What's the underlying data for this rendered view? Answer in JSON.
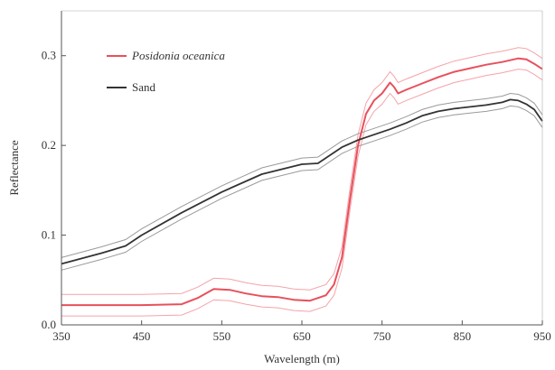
{
  "chart_data": {
    "type": "line",
    "xlabel": "Wavelength (m)",
    "ylabel": "Reflectance",
    "xlim": [
      350,
      950
    ],
    "ylim": [
      0,
      0.35
    ],
    "xticks": [
      350,
      450,
      550,
      650,
      750,
      850,
      950
    ],
    "xtick_labels": [
      "350",
      "450",
      "550",
      "650",
      "750",
      "850",
      "950"
    ],
    "yticks": [
      0.0,
      0.1,
      0.2,
      0.3
    ],
    "ytick_labels": [
      "0.0",
      "0.1",
      "0.2",
      "0.3"
    ],
    "grid": false,
    "legend_position": "top-left",
    "series": [
      {
        "name": "Posidonia oceanica",
        "italic": true,
        "color": "#e8505b",
        "band_color": "#f4a3aa",
        "band_width": 0.012,
        "x": [
          350,
          400,
          450,
          500,
          520,
          540,
          560,
          580,
          600,
          620,
          640,
          660,
          680,
          690,
          700,
          710,
          720,
          730,
          740,
          750,
          760,
          765,
          770,
          780,
          800,
          820,
          840,
          860,
          880,
          900,
          920,
          930,
          940,
          950
        ],
        "y": [
          0.022,
          0.022,
          0.022,
          0.023,
          0.03,
          0.04,
          0.039,
          0.035,
          0.032,
          0.031,
          0.028,
          0.027,
          0.033,
          0.045,
          0.075,
          0.14,
          0.2,
          0.235,
          0.25,
          0.258,
          0.27,
          0.265,
          0.258,
          0.262,
          0.269,
          0.276,
          0.282,
          0.286,
          0.29,
          0.293,
          0.297,
          0.296,
          0.291,
          0.285
        ]
      },
      {
        "name": "Sand",
        "italic": false,
        "color": "#333333",
        "band_color": "#9a9a9a",
        "band_width": 0.007,
        "x": [
          350,
          400,
          430,
          450,
          500,
          550,
          600,
          650,
          670,
          700,
          720,
          740,
          760,
          780,
          800,
          820,
          840,
          860,
          880,
          900,
          910,
          920,
          930,
          940,
          950
        ],
        "y": [
          0.068,
          0.08,
          0.088,
          0.1,
          0.125,
          0.148,
          0.168,
          0.179,
          0.18,
          0.198,
          0.206,
          0.212,
          0.218,
          0.225,
          0.233,
          0.238,
          0.241,
          0.243,
          0.245,
          0.248,
          0.251,
          0.25,
          0.246,
          0.24,
          0.227
        ]
      }
    ]
  }
}
